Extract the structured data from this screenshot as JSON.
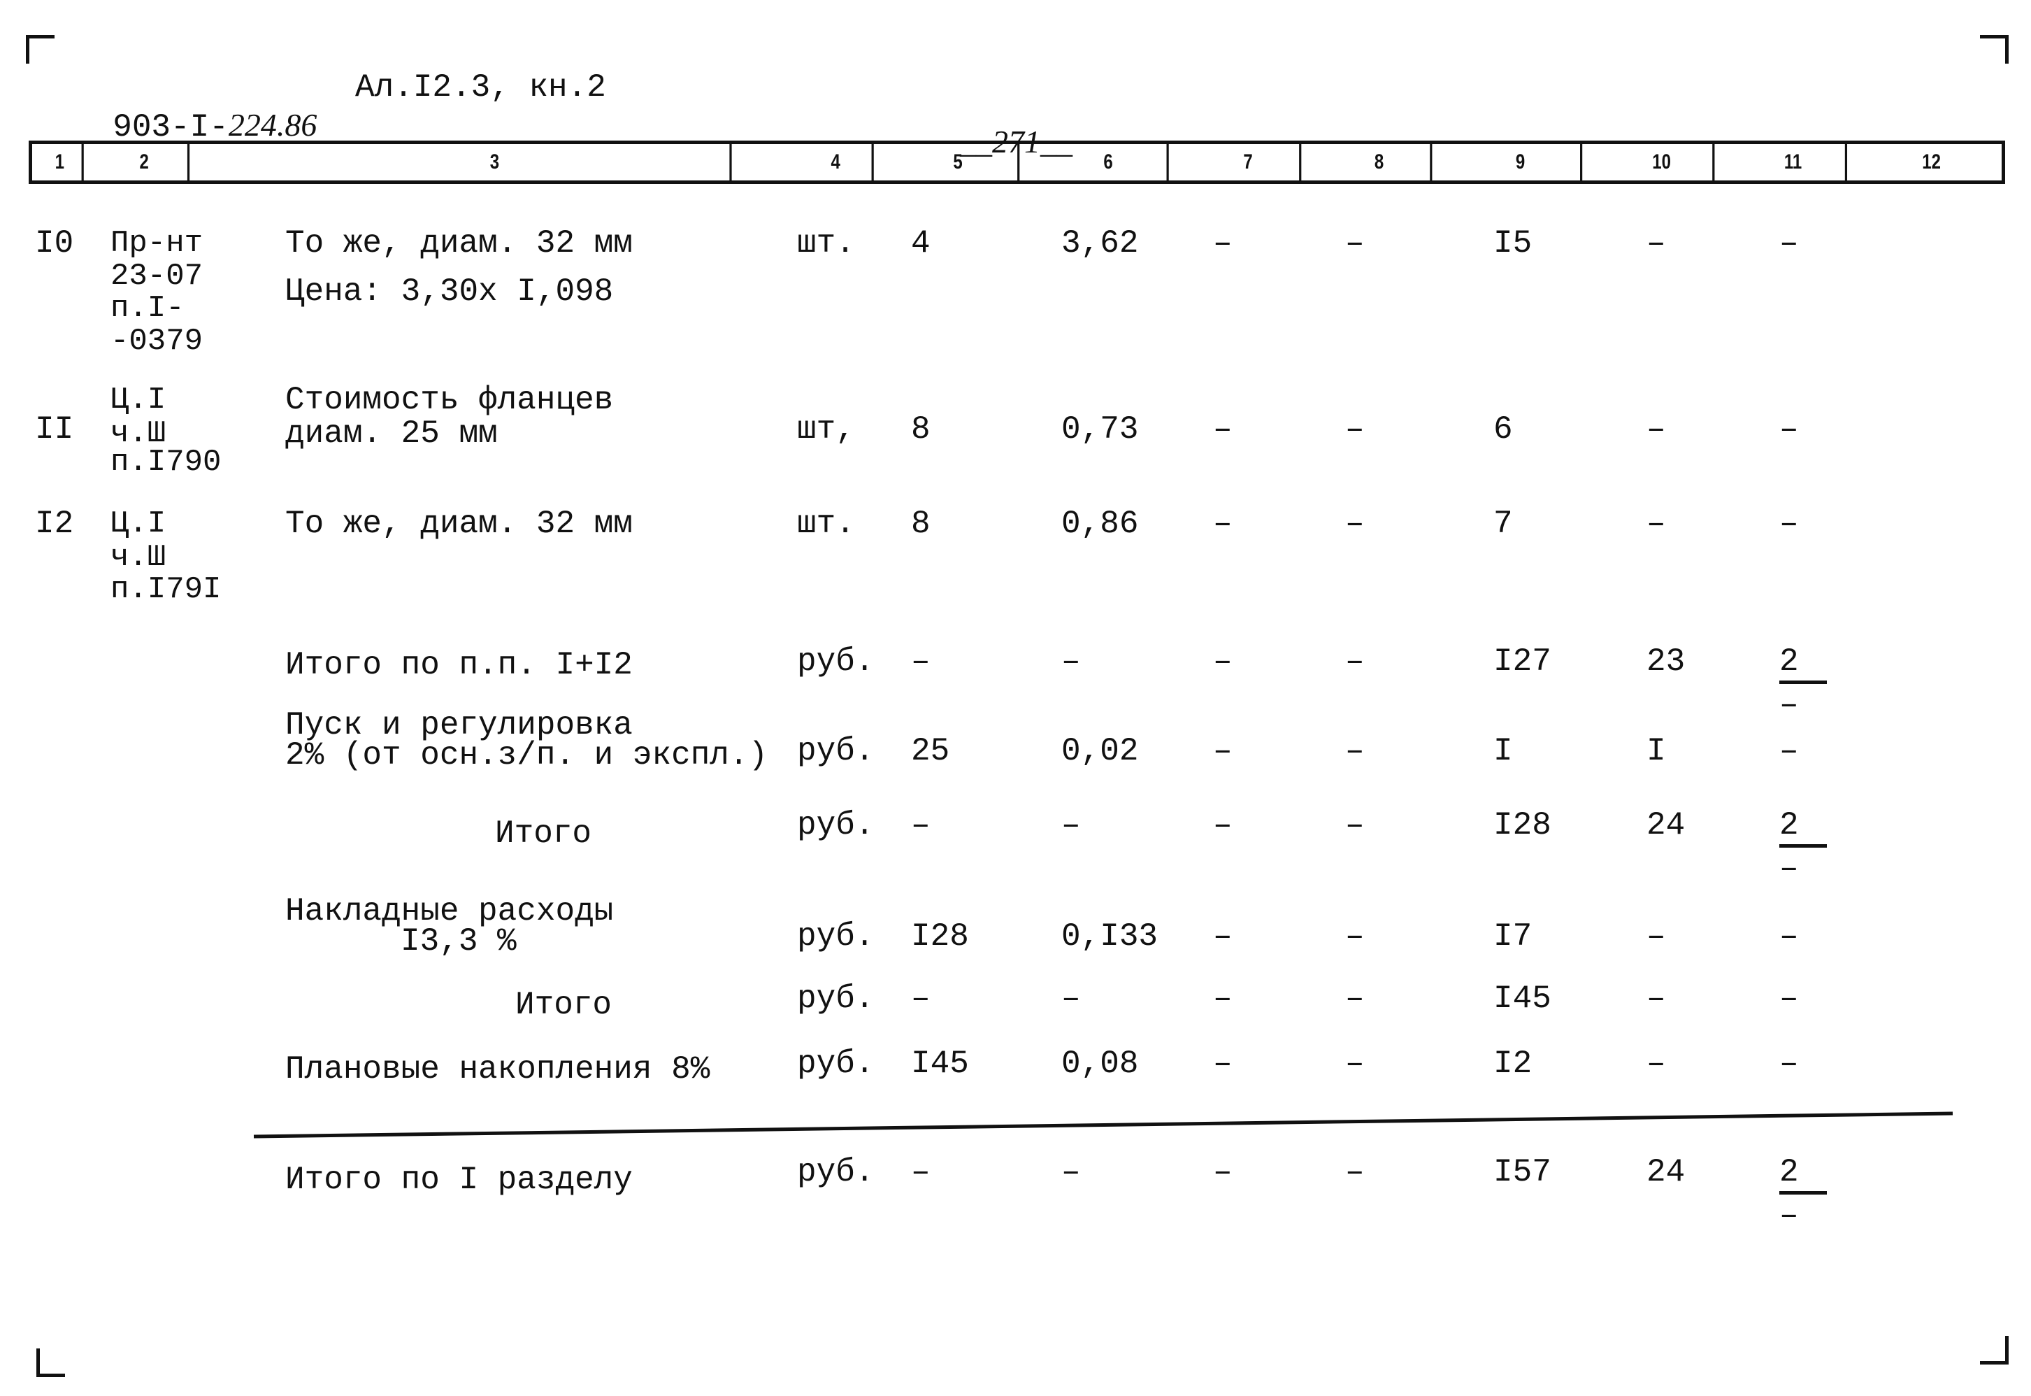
{
  "header": {
    "doc_code_prefix": "903-I-",
    "doc_code_hand": "224.86",
    "album": "Ал.I2.3, кн.2",
    "page_number": "271"
  },
  "columns": [
    "1",
    "2",
    "3",
    "4",
    "5",
    "6",
    "7",
    "8",
    "9",
    "10",
    "11",
    "12"
  ],
  "rows": [
    {
      "no": "I0",
      "ref": [
        "Пр-нт",
        "23-07",
        "п.I-",
        "-0379"
      ],
      "desc": [
        "То же, диам. 32 мм",
        "Цена: 3,30х I,098"
      ],
      "unit": "шт.",
      "c5": "4",
      "c6": "3,62",
      "c7": "–",
      "c8": "–",
      "c9": "I5",
      "c10": "–",
      "c11": "–"
    },
    {
      "no": "II",
      "ref": [
        "Ц.I",
        "ч.Ш",
        "п.I790"
      ],
      "desc": [
        "Стоимость фланцев",
        "диам. 25 мм"
      ],
      "unit": "шт,",
      "c5": "8",
      "c6": "0,73",
      "c7": "–",
      "c8": "–",
      "c9": "6",
      "c10": "–",
      "c11": "–"
    },
    {
      "no": "I2",
      "ref": [
        "Ц.I",
        "ч.Ш",
        "п.I79I"
      ],
      "desc": [
        "То же, диам. 32 мм"
      ],
      "unit": "шт.",
      "c5": "8",
      "c6": "0,86",
      "c7": "–",
      "c8": "–",
      "c9": "7",
      "c10": "–",
      "c11": "–"
    },
    {
      "no": "",
      "ref": [],
      "desc": [
        "Итого по п.п. I+I2"
      ],
      "unit": "руб.",
      "c5": "–",
      "c6": "–",
      "c7": "–",
      "c8": "–",
      "c9": "I27",
      "c10": "23",
      "c11": "2",
      "c11_below": "–"
    },
    {
      "no": "",
      "ref": [],
      "desc": [
        "Пуск и регулировка",
        "2% (от осн.з/п. и экспл.)"
      ],
      "unit": "руб.",
      "c5": "25",
      "c6": "0,02",
      "c7": "–",
      "c8": "–",
      "c9": "I",
      "c10": "I",
      "c11": "–"
    },
    {
      "no": "",
      "ref": [],
      "desc": [
        "Итого"
      ],
      "unit": "руб.",
      "c5": "–",
      "c6": "–",
      "c7": "–",
      "c8": "–",
      "c9": "I28",
      "c10": "24",
      "c11": "2",
      "c11_below": "–"
    },
    {
      "no": "",
      "ref": [],
      "desc": [
        "Накладные расходы",
        "I3,3 %"
      ],
      "unit": "руб.",
      "c5": "I28",
      "c6": "0,I33",
      "c7": "–",
      "c8": "–",
      "c9": "I7",
      "c10": "–",
      "c11": "–"
    },
    {
      "no": "",
      "ref": [],
      "desc": [
        "Итого"
      ],
      "unit": "руб.",
      "c5": "–",
      "c6": "–",
      "c7": "–",
      "c8": "–",
      "c9": "I45",
      "c10": "–",
      "c11": "–"
    },
    {
      "no": "",
      "ref": [],
      "desc": [
        "Плановые накопления 8%"
      ],
      "unit": "руб.",
      "c5": "I45",
      "c6": "0,08",
      "c7": "–",
      "c8": "–",
      "c9": "I2",
      "c10": "–",
      "c11": "–"
    },
    {
      "no": "",
      "ref": [],
      "desc": [
        "Итого по I разделу"
      ],
      "unit": "руб.",
      "c5": "–",
      "c6": "–",
      "c7": "–",
      "c8": "–",
      "c9": "I57",
      "c10": "24",
      "c11": "2",
      "c11_below": "–"
    }
  ]
}
